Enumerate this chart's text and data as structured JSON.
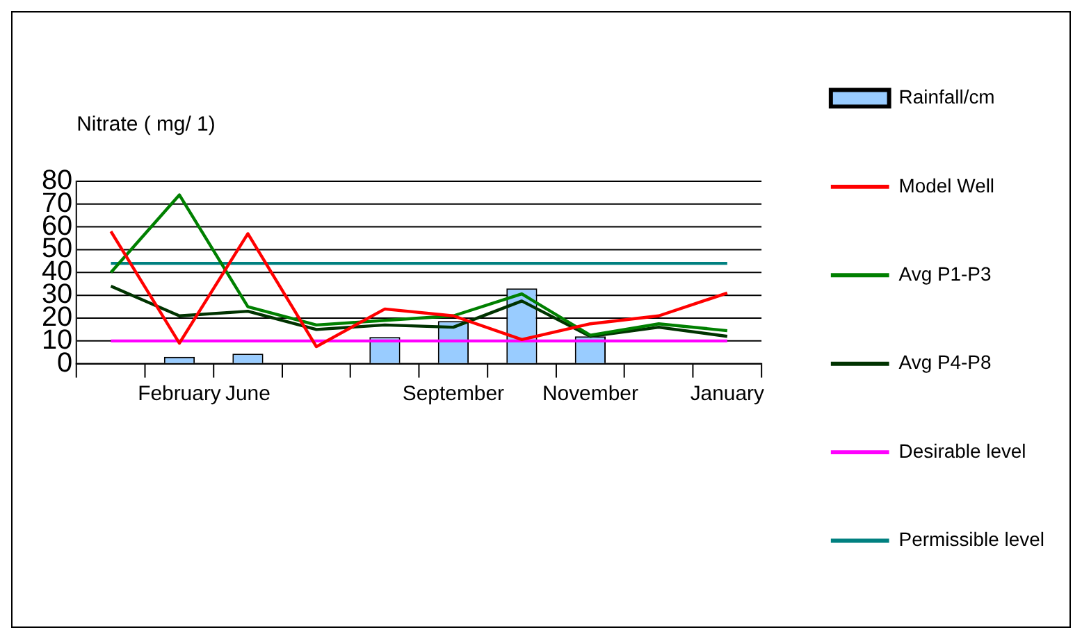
{
  "chart_data": {
    "type": "line",
    "ylabel": "Nitrate ( mg/ 1)",
    "categories": [
      null,
      "February",
      "June",
      null,
      null,
      "September",
      null,
      "November",
      null,
      "January"
    ],
    "ylim": [
      0,
      80
    ],
    "yticks": [
      0,
      10,
      20,
      30,
      40,
      50,
      60,
      70,
      80
    ],
    "grid": "y",
    "legend": "right",
    "marker": "none",
    "line_style": "solid",
    "series": [
      {
        "name": "Rainfall/cm",
        "type": "bar",
        "color": "#99ccff",
        "values": [
          null,
          3,
          4.4,
          null,
          11.7,
          18.7,
          33,
          12,
          null,
          null
        ]
      },
      {
        "name": "Model Well",
        "color": "#ff0000",
        "values": [
          58,
          9,
          57,
          7.5,
          24,
          21,
          10.6,
          17.5,
          21,
          31
        ]
      },
      {
        "name": "Avg P1-P3",
        "color": "#008000",
        "values": [
          40,
          74,
          25,
          17,
          19,
          21,
          30.6,
          12.5,
          17.5,
          14.5
        ]
      },
      {
        "name": "Avg P4-P8",
        "color": "#003300",
        "values": [
          34,
          21,
          23,
          15,
          17,
          16,
          27.5,
          12,
          16,
          12
        ]
      },
      {
        "name": "Desirable level",
        "color": "#ff00ff",
        "values": [
          10,
          10,
          10,
          10,
          10,
          10,
          10,
          10,
          10,
          10
        ]
      },
      {
        "name": "Permissible level",
        "color": "#008080",
        "values": [
          44,
          44,
          44,
          44,
          44,
          44,
          44,
          44,
          44,
          44
        ]
      }
    ]
  }
}
